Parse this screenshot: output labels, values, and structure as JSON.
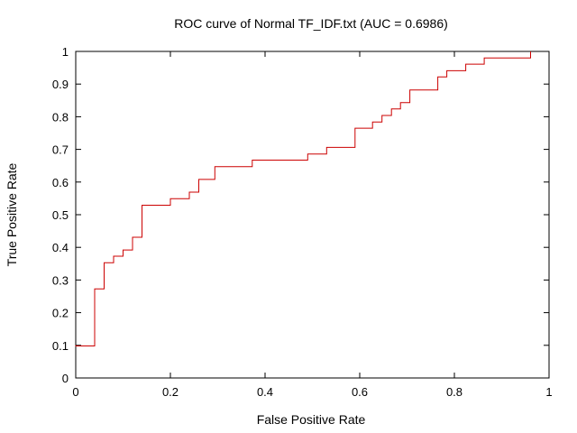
{
  "chart_data": {
    "type": "line",
    "title": "ROC curve of Normal TF_IDF.txt (AUC = 0.6986)",
    "xlabel": "False Positive Rate",
    "ylabel": "True Positive Rate",
    "xlim": [
      0,
      1
    ],
    "ylim": [
      0,
      1
    ],
    "x_ticks": [
      "0",
      "0.2",
      "0.4",
      "0.6",
      "0.8",
      "1"
    ],
    "y_ticks": [
      "0",
      "0.1",
      "0.2",
      "0.3",
      "0.4",
      "0.5",
      "0.6",
      "0.7",
      "0.8",
      "0.9",
      "1"
    ],
    "grid": false,
    "line_color": "#cc0000",
    "series": [
      {
        "points": [
          [
            0.0,
            0.1
          ],
          [
            0.0,
            0.098
          ],
          [
            0.04,
            0.098
          ],
          [
            0.04,
            0.273
          ],
          [
            0.06,
            0.273
          ],
          [
            0.06,
            0.353
          ],
          [
            0.08,
            0.353
          ],
          [
            0.08,
            0.373
          ],
          [
            0.1,
            0.373
          ],
          [
            0.1,
            0.392
          ],
          [
            0.12,
            0.392
          ],
          [
            0.12,
            0.431
          ],
          [
            0.14,
            0.431
          ],
          [
            0.14,
            0.529
          ],
          [
            0.2,
            0.529
          ],
          [
            0.2,
            0.549
          ],
          [
            0.24,
            0.549
          ],
          [
            0.24,
            0.569
          ],
          [
            0.26,
            0.569
          ],
          [
            0.26,
            0.608
          ],
          [
            0.294,
            0.608
          ],
          [
            0.294,
            0.647
          ],
          [
            0.373,
            0.647
          ],
          [
            0.373,
            0.667
          ],
          [
            0.49,
            0.667
          ],
          [
            0.49,
            0.686
          ],
          [
            0.53,
            0.686
          ],
          [
            0.53,
            0.706
          ],
          [
            0.59,
            0.706
          ],
          [
            0.59,
            0.765
          ],
          [
            0.627,
            0.765
          ],
          [
            0.627,
            0.784
          ],
          [
            0.647,
            0.784
          ],
          [
            0.647,
            0.804
          ],
          [
            0.667,
            0.804
          ],
          [
            0.667,
            0.824
          ],
          [
            0.686,
            0.824
          ],
          [
            0.686,
            0.843
          ],
          [
            0.706,
            0.843
          ],
          [
            0.706,
            0.882
          ],
          [
            0.765,
            0.882
          ],
          [
            0.765,
            0.922
          ],
          [
            0.784,
            0.922
          ],
          [
            0.784,
            0.941
          ],
          [
            0.824,
            0.941
          ],
          [
            0.824,
            0.961
          ],
          [
            0.863,
            0.961
          ],
          [
            0.863,
            0.98
          ],
          [
            0.961,
            0.98
          ],
          [
            0.961,
            1.0
          ]
        ]
      }
    ]
  }
}
